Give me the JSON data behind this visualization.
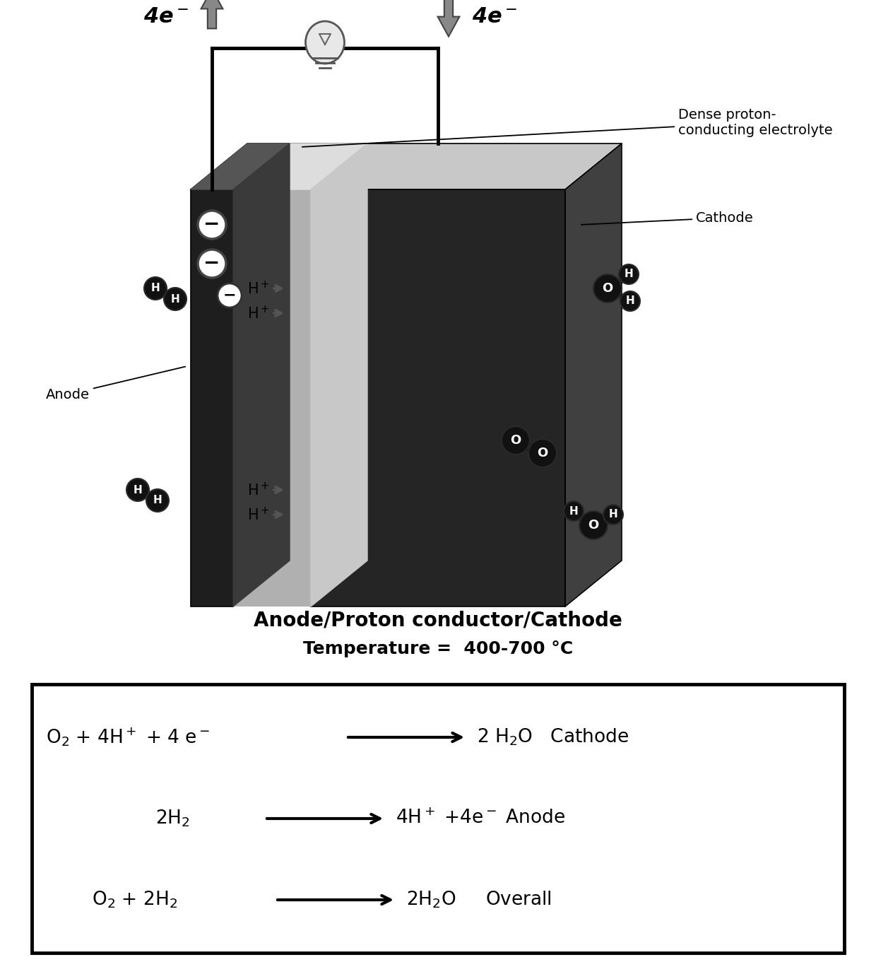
{
  "bg_color": "#ffffff",
  "title_line1": "Anode/Proton conductor/Cathode",
  "title_line2": "Temperature =  400-700 °C",
  "label_dense": "Dense proton-\nconducting electrolyte",
  "label_cathode": "Cathode",
  "label_anode": "Anode",
  "label_4e_left": "4e$^-$",
  "label_4e_right": "4e$^-$",
  "eq1_left": "O$_2$ + 4H$^+$ + 4 e$^-$",
  "eq1_right": "2 H$_2$O   Cathode",
  "eq2_left": "2H$_2$",
  "eq2_right": "4H$^+$ +4e$^-$ Anode",
  "eq3_left": "O$_2$ + 2H$_2$",
  "eq3_right": "2H$_2$O     Overall",
  "anode_color": "#1e1e1e",
  "cathode_color": "#252525",
  "electrolyte_color": "#b0b0b0",
  "top_face_color": "#c8c8c8",
  "right_face_color": "#404040",
  "wire_lw": 3.5
}
